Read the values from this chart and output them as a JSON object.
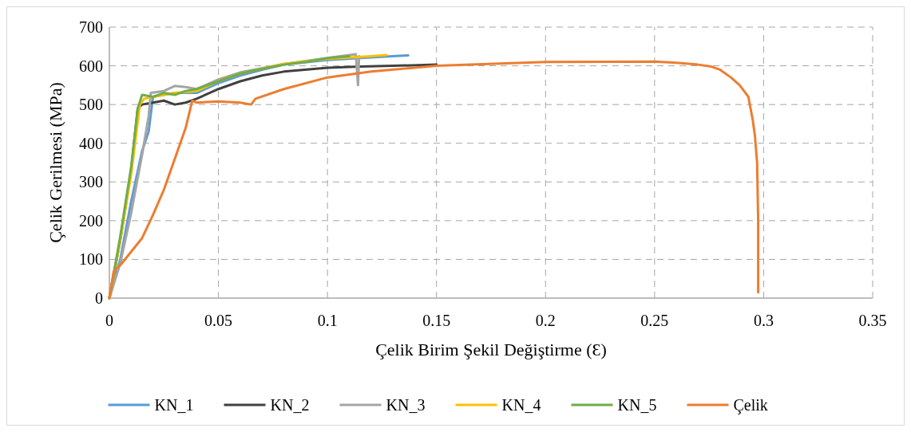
{
  "chart_data": {
    "type": "line",
    "xlabel": "Çelik Birim Şekil Değiştirme (Ɛ)",
    "ylabel": "Çelik Gerilmesi (MPa)",
    "xlim": [
      0,
      0.35
    ],
    "xticks": [
      0,
      0.05,
      0.1,
      0.15,
      0.2,
      0.25,
      0.3,
      0.35
    ],
    "ylim": [
      0,
      700
    ],
    "yticks": [
      0,
      100,
      200,
      300,
      400,
      500,
      600,
      700
    ],
    "grid": true,
    "legend": "bottom",
    "line_style": "solid",
    "series": [
      {
        "name": "KN_1",
        "color": "#5b9bd5",
        "x": [
          0,
          0.005,
          0.01,
          0.015,
          0.018,
          0.02,
          0.03,
          0.04,
          0.05,
          0.06,
          0.07,
          0.08,
          0.1,
          0.12,
          0.137
        ],
        "values": [
          0,
          100,
          250,
          380,
          430,
          520,
          530,
          530,
          555,
          575,
          590,
          603,
          615,
          622,
          627
        ]
      },
      {
        "name": "KN_2",
        "color": "#404040",
        "x": [
          0,
          0.005,
          0.01,
          0.013,
          0.015,
          0.02,
          0.025,
          0.03,
          0.035,
          0.04,
          0.05,
          0.06,
          0.07,
          0.08,
          0.1,
          0.115,
          0.13,
          0.15
        ],
        "values": [
          0,
          150,
          330,
          490,
          500,
          505,
          510,
          500,
          505,
          515,
          540,
          560,
          575,
          585,
          595,
          598,
          600,
          603
        ]
      },
      {
        "name": "KN_3",
        "color": "#a5a5a5",
        "x": [
          0,
          0.005,
          0.01,
          0.015,
          0.018,
          0.019,
          0.025,
          0.03,
          0.035,
          0.04,
          0.05,
          0.06,
          0.08,
          0.1,
          0.113,
          0.114,
          0.1145
        ],
        "values": [
          0,
          90,
          220,
          370,
          470,
          530,
          535,
          548,
          545,
          540,
          565,
          583,
          605,
          620,
          630,
          550,
          625
        ]
      },
      {
        "name": "KN_4",
        "color": "#ffc000",
        "x": [
          0,
          0.005,
          0.01,
          0.014,
          0.016,
          0.02,
          0.03,
          0.04,
          0.05,
          0.06,
          0.08,
          0.1,
          0.12,
          0.127
        ],
        "values": [
          0,
          150,
          320,
          500,
          515,
          520,
          530,
          535,
          560,
          580,
          605,
          618,
          625,
          628
        ]
      },
      {
        "name": "KN_5",
        "color": "#70ad47",
        "x": [
          0,
          0.005,
          0.01,
          0.013,
          0.015,
          0.02,
          0.025,
          0.03,
          0.035,
          0.04,
          0.05,
          0.06,
          0.07,
          0.08,
          0.09,
          0.1,
          0.11
        ],
        "values": [
          0,
          160,
          340,
          490,
          525,
          520,
          530,
          525,
          535,
          540,
          560,
          580,
          592,
          603,
          610,
          620,
          625
        ]
      },
      {
        "name": "Çelik",
        "color": "#ed7d31",
        "x": [
          0,
          0.002,
          0.005,
          0.01,
          0.015,
          0.02,
          0.025,
          0.03,
          0.035,
          0.038,
          0.04,
          0.05,
          0.06,
          0.065,
          0.067,
          0.08,
          0.1,
          0.12,
          0.15,
          0.2,
          0.25,
          0.26,
          0.27,
          0.276,
          0.28,
          0.285,
          0.289,
          0.293,
          0.295,
          0.296,
          0.297,
          0.2975,
          0.2975
        ],
        "values": [
          0,
          70,
          85,
          120,
          155,
          215,
          280,
          360,
          440,
          510,
          505,
          508,
          505,
          500,
          515,
          540,
          570,
          585,
          600,
          610,
          611,
          608,
          603,
          598,
          590,
          570,
          550,
          520,
          460,
          420,
          350,
          200,
          15
        ]
      }
    ]
  }
}
